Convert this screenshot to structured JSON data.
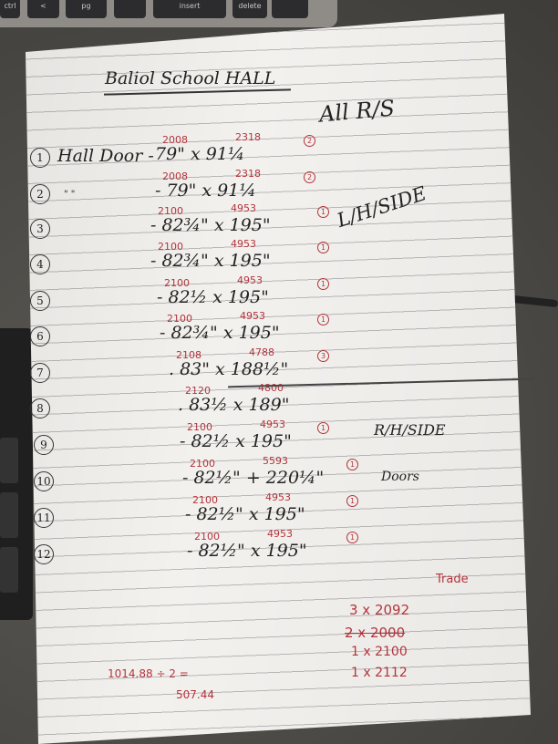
{
  "keyboard": {
    "keys": [
      "ctrl",
      "<",
      "pg",
      "insert",
      "delete"
    ]
  },
  "note": {
    "title": "Baliol School HALL",
    "first_label": "Hall Door -",
    "ditto": "\"      \"",
    "side_notes": [
      "All R/S",
      "L/H/SIDE",
      "R/H/SIDE",
      "Doors"
    ],
    "rows": [
      {
        "n": "1",
        "h_mm": "2008",
        "w_mm": "2318",
        "dims": "79\" x 91¼",
        "qty": "2"
      },
      {
        "n": "2",
        "h_mm": "2008",
        "w_mm": "2318",
        "dims": "- 79\" x 91¼",
        "qty": "2"
      },
      {
        "n": "3",
        "h_mm": "2100",
        "w_mm": "4953",
        "dims": "- 82¾\" x 195\"",
        "qty": "1"
      },
      {
        "n": "4",
        "h_mm": "2100",
        "w_mm": "4953",
        "dims": "- 82¾\" x 195\"",
        "qty": "1"
      },
      {
        "n": "5",
        "h_mm": "2100",
        "w_mm": "4953",
        "dims": "- 82½ x 195\"",
        "qty": "1"
      },
      {
        "n": "6",
        "h_mm": "2100",
        "w_mm": "4953",
        "dims": "- 82¾\" x 195\"",
        "qty": "1"
      },
      {
        "n": "7",
        "h_mm": "2108",
        "w_mm": "4788",
        "dims": ". 83\" x 188½\"",
        "qty": "3"
      },
      {
        "n": "8",
        "h_mm": "2120",
        "w_mm": "4800",
        "dims": ". 83½ x 189\"",
        "qty": ""
      },
      {
        "n": "9",
        "h_mm": "2100",
        "w_mm": "4953",
        "dims": "- 82½ x 195\"",
        "qty": "1"
      },
      {
        "n": "10",
        "h_mm": "2100",
        "w_mm": "5593",
        "dims": "- 82½\" + 220¼\"",
        "qty": "1"
      },
      {
        "n": "11",
        "h_mm": "2100",
        "w_mm": "4953",
        "dims": "- 82½\" x 195\"",
        "qty": "1"
      },
      {
        "n": "12",
        "h_mm": "2100",
        "w_mm": "4953",
        "dims": "- 82½\" x 195\"",
        "qty": "1"
      }
    ],
    "trade": {
      "label": "Trade",
      "lines": [
        "3 x 2092",
        "2 x 2000",
        "1 x 2100",
        "1 x 2112"
      ],
      "struck": [
        false,
        true,
        false,
        false
      ]
    },
    "calc": {
      "line1": "1014.88 ÷ 2 =",
      "line2": "507.44"
    }
  },
  "colors": {
    "ink": "#222222",
    "red_ink": "#b3343c",
    "paper": "#f3f1ee"
  }
}
